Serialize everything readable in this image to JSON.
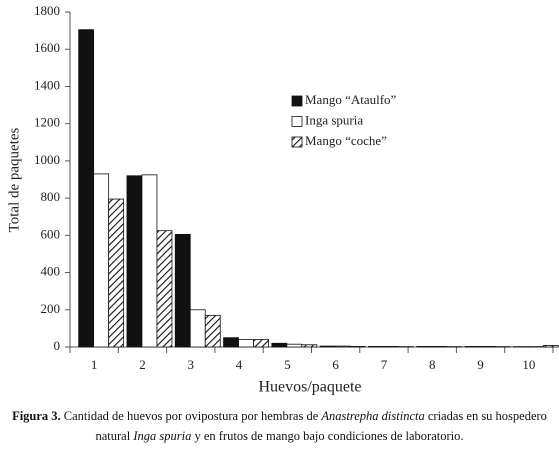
{
  "chart_data": {
    "type": "bar",
    "categories": [
      "1",
      "2",
      "3",
      "4",
      "5",
      "6",
      "7",
      "8",
      "9",
      "10"
    ],
    "series": [
      {
        "name": "Mango “Ataulfo”",
        "color": "#111111",
        "values": [
          1705,
          920,
          605,
          50,
          20,
          5,
          3,
          3,
          3,
          2
        ]
      },
      {
        "name": "Inga spuria",
        "color": "#ffffff",
        "values": [
          930,
          925,
          200,
          40,
          15,
          5,
          3,
          3,
          3,
          2
        ]
      },
      {
        "name": "Mango “coche”",
        "color": "hatch",
        "values": [
          795,
          625,
          170,
          40,
          12,
          3,
          2,
          2,
          2,
          8
        ]
      }
    ],
    "ylim": [
      0,
      1800
    ],
    "yticks": [
      0,
      200,
      400,
      600,
      800,
      1000,
      1200,
      1400,
      1600,
      1800
    ],
    "xlabel": "Huevos/paquete",
    "ylabel": "Total  de paquetes",
    "grid": false,
    "legend": "upper right"
  },
  "caption": {
    "label": "Figura 3.",
    "text1": " Cantidad de huevos por ovipostura por hembras de ",
    "italic1": "Anastrepha distincta",
    "text2": " criadas en su hospedero natural ",
    "italic2": "Inga spuria",
    "text3": " y en frutos de mango bajo condiciones de laboratorio."
  }
}
